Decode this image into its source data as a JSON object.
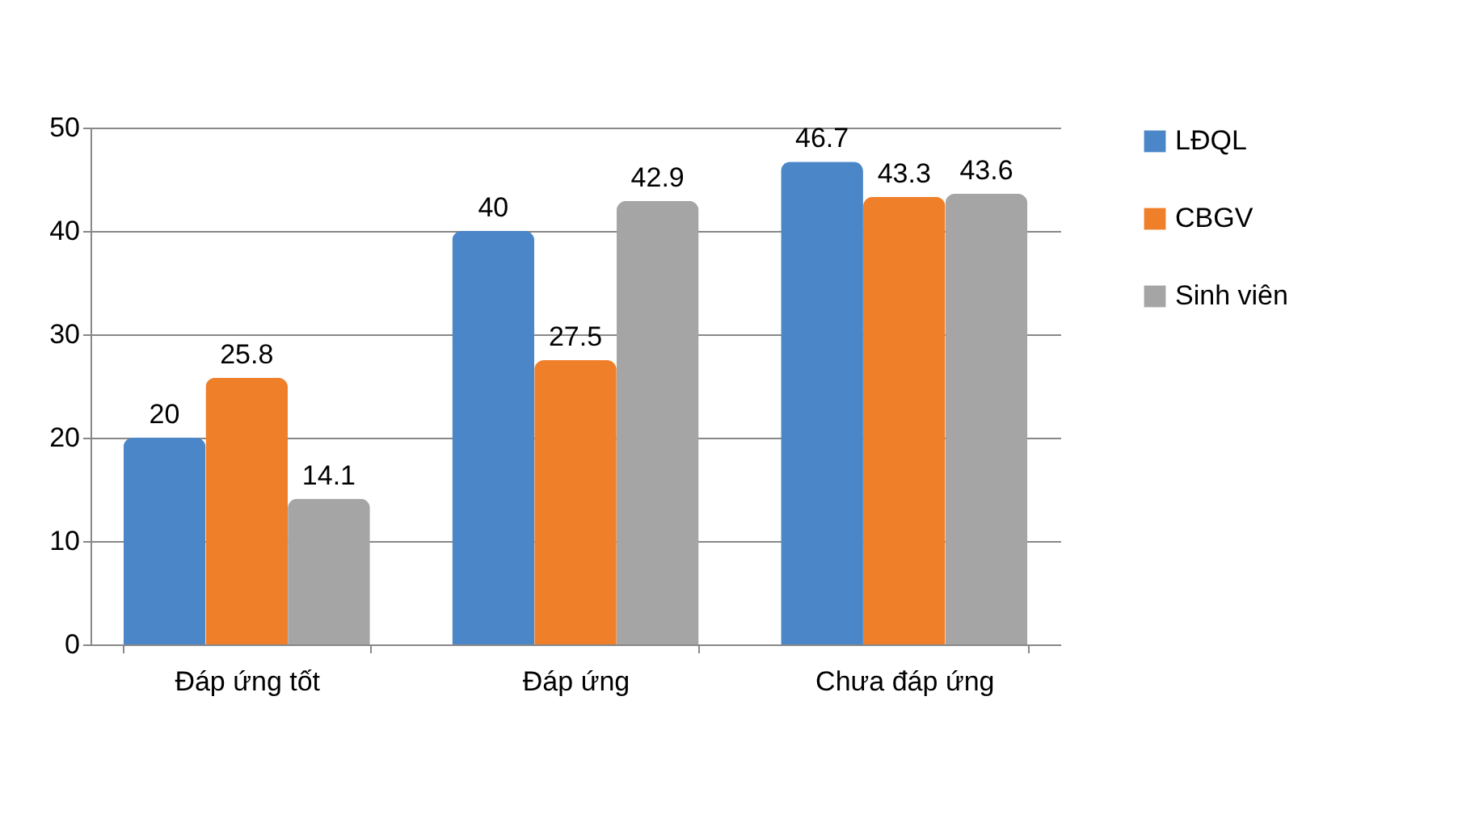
{
  "chart_data": {
    "type": "bar",
    "categories": [
      "Đáp ứng tốt",
      "Đáp ứng",
      "Chưa đáp ứng"
    ],
    "series": [
      {
        "name": "LĐQL",
        "color": "#4a86c8",
        "values": [
          20,
          40,
          46.7
        ]
      },
      {
        "name": "CBGV",
        "color": "#f07f2a",
        "values": [
          25.8,
          27.5,
          43.3
        ]
      },
      {
        "name": "Sinh viên",
        "color": "#a5a5a5",
        "values": [
          14.1,
          42.9,
          43.6
        ]
      }
    ],
    "ylim": [
      0,
      50
    ],
    "yticks": [
      0,
      10,
      20,
      30,
      40,
      50
    ],
    "grid": "y",
    "legend": "right",
    "data_labels": true
  }
}
